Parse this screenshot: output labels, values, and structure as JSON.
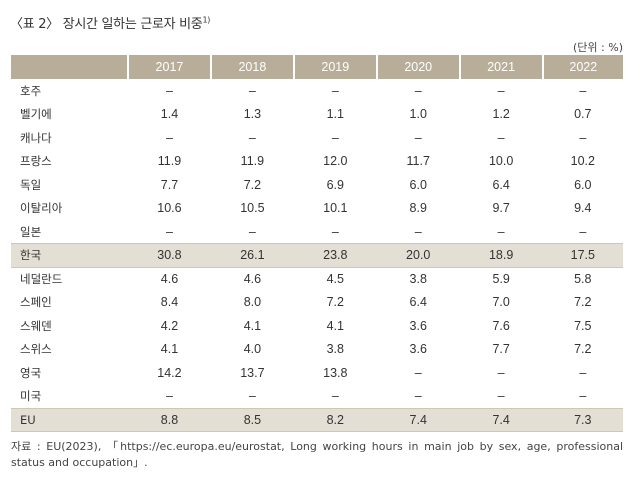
{
  "title": "〈표 2〉 장시간 일하는 근로자 비중",
  "title_sup": "1)",
  "unit": "(단위 : %)",
  "table": {
    "years": [
      "2017",
      "2018",
      "2019",
      "2020",
      "2021",
      "2022"
    ],
    "rows": [
      {
        "country": "호주",
        "values": [
          "–",
          "–",
          "–",
          "–",
          "–",
          "–"
        ]
      },
      {
        "country": "벨기에",
        "values": [
          "1.4",
          "1.3",
          "1.1",
          "1.0",
          "1.2",
          "0.7"
        ]
      },
      {
        "country": "캐나다",
        "values": [
          "–",
          "–",
          "–",
          "–",
          "–",
          "–"
        ]
      },
      {
        "country": "프랑스",
        "values": [
          "11.9",
          "11.9",
          "12.0",
          "11.7",
          "10.0",
          "10.2"
        ]
      },
      {
        "country": "독일",
        "values": [
          "7.7",
          "7.2",
          "6.9",
          "6.0",
          "6.4",
          "6.0"
        ]
      },
      {
        "country": "이탈리아",
        "values": [
          "10.6",
          "10.5",
          "10.1",
          "8.9",
          "9.7",
          "9.4"
        ]
      },
      {
        "country": "일본",
        "values": [
          "–",
          "–",
          "–",
          "–",
          "–",
          "–"
        ]
      },
      {
        "country": "한국",
        "values": [
          "30.8",
          "26.1",
          "23.8",
          "20.0",
          "18.9",
          "17.5"
        ]
      },
      {
        "country": "네덜란드",
        "values": [
          "4.6",
          "4.6",
          "4.5",
          "3.8",
          "5.9",
          "5.8"
        ]
      },
      {
        "country": "스페인",
        "values": [
          "8.4",
          "8.0",
          "7.2",
          "6.4",
          "7.0",
          "7.2"
        ]
      },
      {
        "country": "스웨덴",
        "values": [
          "4.2",
          "4.1",
          "4.1",
          "3.6",
          "7.6",
          "7.5"
        ]
      },
      {
        "country": "스위스",
        "values": [
          "4.1",
          "4.0",
          "3.8",
          "3.6",
          "7.7",
          "7.2"
        ]
      },
      {
        "country": "영국",
        "values": [
          "14.2",
          "13.7",
          "13.8",
          "–",
          "–",
          "–"
        ]
      },
      {
        "country": "미국",
        "values": [
          "–",
          "–",
          "–",
          "–",
          "–",
          "–"
        ]
      },
      {
        "country": "EU",
        "values": [
          "8.8",
          "8.5",
          "8.2",
          "7.4",
          "7.4",
          "7.3"
        ]
      }
    ]
  },
  "source": "자료 : EU(2023), 「https://ec.europa.eu/eurostat, Long working hours in main job by sex, age, professional status and occupation」."
}
